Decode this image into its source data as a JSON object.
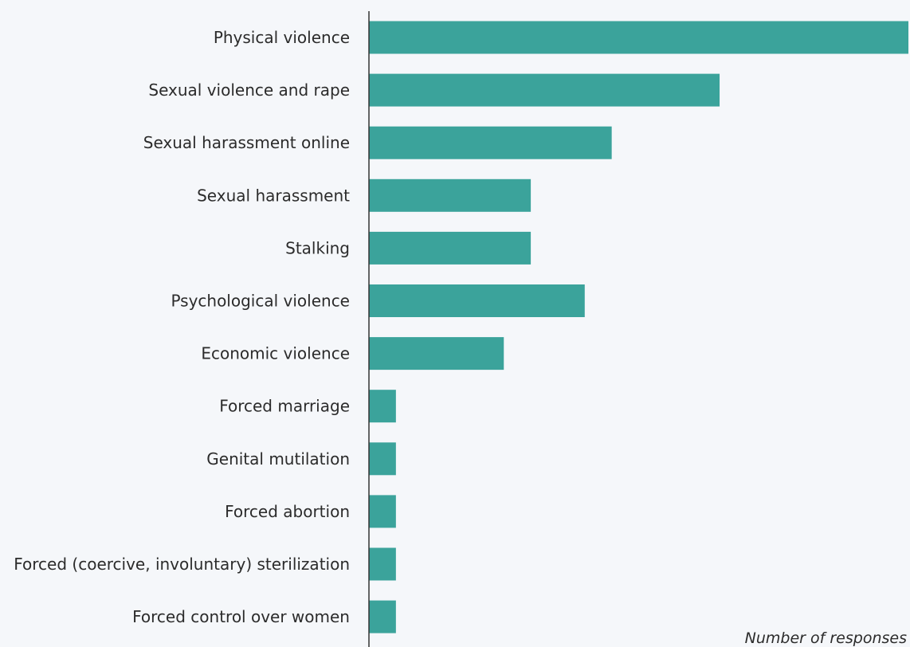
{
  "chart_data": {
    "type": "bar",
    "orientation": "horizontal",
    "categories": [
      "Physical violence",
      "Sexual violence and rape",
      "Sexual harassment online",
      "Sexual harassment",
      "Stalking",
      "Psychological violence",
      "Economic violence",
      "Forced marriage",
      "Genital mutilation",
      "Forced abortion",
      "Forced (coercive, involuntary) sterilization",
      "Forced control over women"
    ],
    "values": [
      20,
      13,
      9,
      6,
      6,
      8,
      5,
      1,
      1,
      1,
      1,
      1
    ],
    "xlabel": "Number of responses",
    "ylabel": "",
    "xlim": [
      0,
      20
    ],
    "grid": false,
    "legend": "none",
    "bar_color": "#3ba39b",
    "axis_color": "#333333"
  }
}
